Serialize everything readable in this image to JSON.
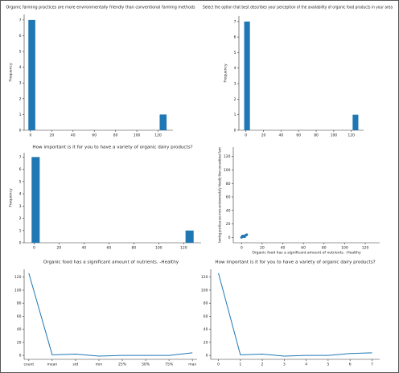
{
  "chart_data": [
    {
      "type": "histogram",
      "title": "Organic farming practices are more environmentally friendly than conventional farming methods",
      "ylabel": "Frequency",
      "bins": [
        -2,
        4.5,
        11,
        17.5,
        24,
        30.5,
        37,
        43.5,
        50,
        56.5,
        63,
        69.5,
        76,
        82.5,
        89,
        95.5,
        102,
        108.5,
        115,
        121.5,
        128
      ],
      "values": [
        7,
        0,
        0,
        0,
        0,
        0,
        0,
        0,
        0,
        0,
        0,
        0,
        0,
        0,
        0,
        0,
        0,
        0,
        0,
        1
      ],
      "color": "#1f77b4",
      "xlim": [
        -6,
        134
      ],
      "xticks": [
        0,
        20,
        40,
        60,
        80,
        100,
        120
      ],
      "ylim": [
        0,
        7.35
      ],
      "yticks": [
        0,
        1,
        2,
        3,
        4,
        5,
        6,
        7
      ]
    },
    {
      "type": "histogram",
      "title": "Select the option that best describes your perception of the availability of organic food products in your area",
      "ylabel": "Frequency",
      "bins": [
        -2,
        4.5,
        11,
        17.5,
        24,
        30.5,
        37,
        43.5,
        50,
        56.5,
        63,
        69.5,
        76,
        82.5,
        89,
        95.5,
        102,
        108.5,
        115,
        121.5,
        128
      ],
      "values": [
        7,
        0,
        0,
        0,
        0,
        0,
        0,
        0,
        0,
        0,
        0,
        0,
        0,
        0,
        0,
        0,
        0,
        0,
        0,
        1
      ],
      "color": "#1f77b4",
      "xlim": [
        -8,
        134
      ],
      "xticks": [
        0,
        20,
        40,
        60,
        80,
        100,
        120
      ],
      "ylim": [
        0,
        7.35
      ],
      "yticks": [
        0,
        1,
        2,
        3,
        4,
        5,
        6,
        7
      ]
    },
    {
      "type": "histogram",
      "title": "How important is it for you to have a variety of organic dairy products?",
      "ylabel": "Frequency",
      "bins": [
        -2,
        4.5,
        11,
        17.5,
        24,
        30.5,
        37,
        43.5,
        50,
        56.5,
        63,
        69.5,
        76,
        82.5,
        89,
        95.5,
        102,
        108.5,
        115,
        121.5,
        128
      ],
      "values": [
        7,
        0,
        0,
        0,
        0,
        0,
        0,
        0,
        0,
        0,
        0,
        0,
        0,
        0,
        0,
        0,
        0,
        0,
        0,
        1
      ],
      "color": "#1f77b4",
      "xlim": [
        -8,
        134
      ],
      "xticks": [
        0,
        20,
        40,
        60,
        80,
        100,
        120
      ],
      "ylim": [
        0,
        7.35
      ],
      "yticks": [
        0,
        1,
        2,
        3,
        4,
        5,
        6,
        7
      ]
    },
    {
      "type": "scatter",
      "xlabel": "Organic food has a significant amount of nutrients. -Healthy",
      "ylabel": "farming practices are more environmentally friendly than conventional farm",
      "x": [
        0,
        1,
        2,
        3,
        4,
        1,
        5
      ],
      "values": [
        0,
        1,
        2,
        1,
        3,
        2,
        4
      ],
      "color": "#1f77b4",
      "xlim": [
        -8,
        134
      ],
      "xticks": [
        0,
        20,
        40,
        60,
        80,
        100,
        120
      ],
      "ylim": [
        -8,
        134
      ],
      "yticks": [
        0,
        20,
        40,
        60,
        80,
        100,
        120
      ]
    },
    {
      "type": "line",
      "title": "Organic food has a significant amount of nutrients. -Healthy",
      "categories": [
        "count",
        "mean",
        "std",
        "min",
        "25%",
        "50%",
        "75%",
        "max"
      ],
      "values": [
        126,
        1,
        2,
        -1,
        0,
        0,
        0,
        4
      ],
      "color": "#1f77b4",
      "ylim": [
        -6,
        132
      ],
      "yticks": [
        0,
        20,
        40,
        60,
        80,
        100,
        120
      ]
    },
    {
      "type": "line",
      "title": "How important is it for you to have a variety of organic dairy products?",
      "x": [
        0,
        1,
        2,
        3,
        4,
        5,
        6,
        7
      ],
      "values": [
        126,
        1,
        2,
        -1,
        0,
        0,
        3,
        4
      ],
      "color": "#1f77b4",
      "xlim": [
        -0.35,
        7.35
      ],
      "xticks": [
        0,
        1,
        2,
        3,
        4,
        5,
        6,
        7
      ],
      "ylim": [
        -6,
        132
      ],
      "yticks": [
        0,
        20,
        40,
        60,
        80,
        100,
        120
      ]
    }
  ]
}
